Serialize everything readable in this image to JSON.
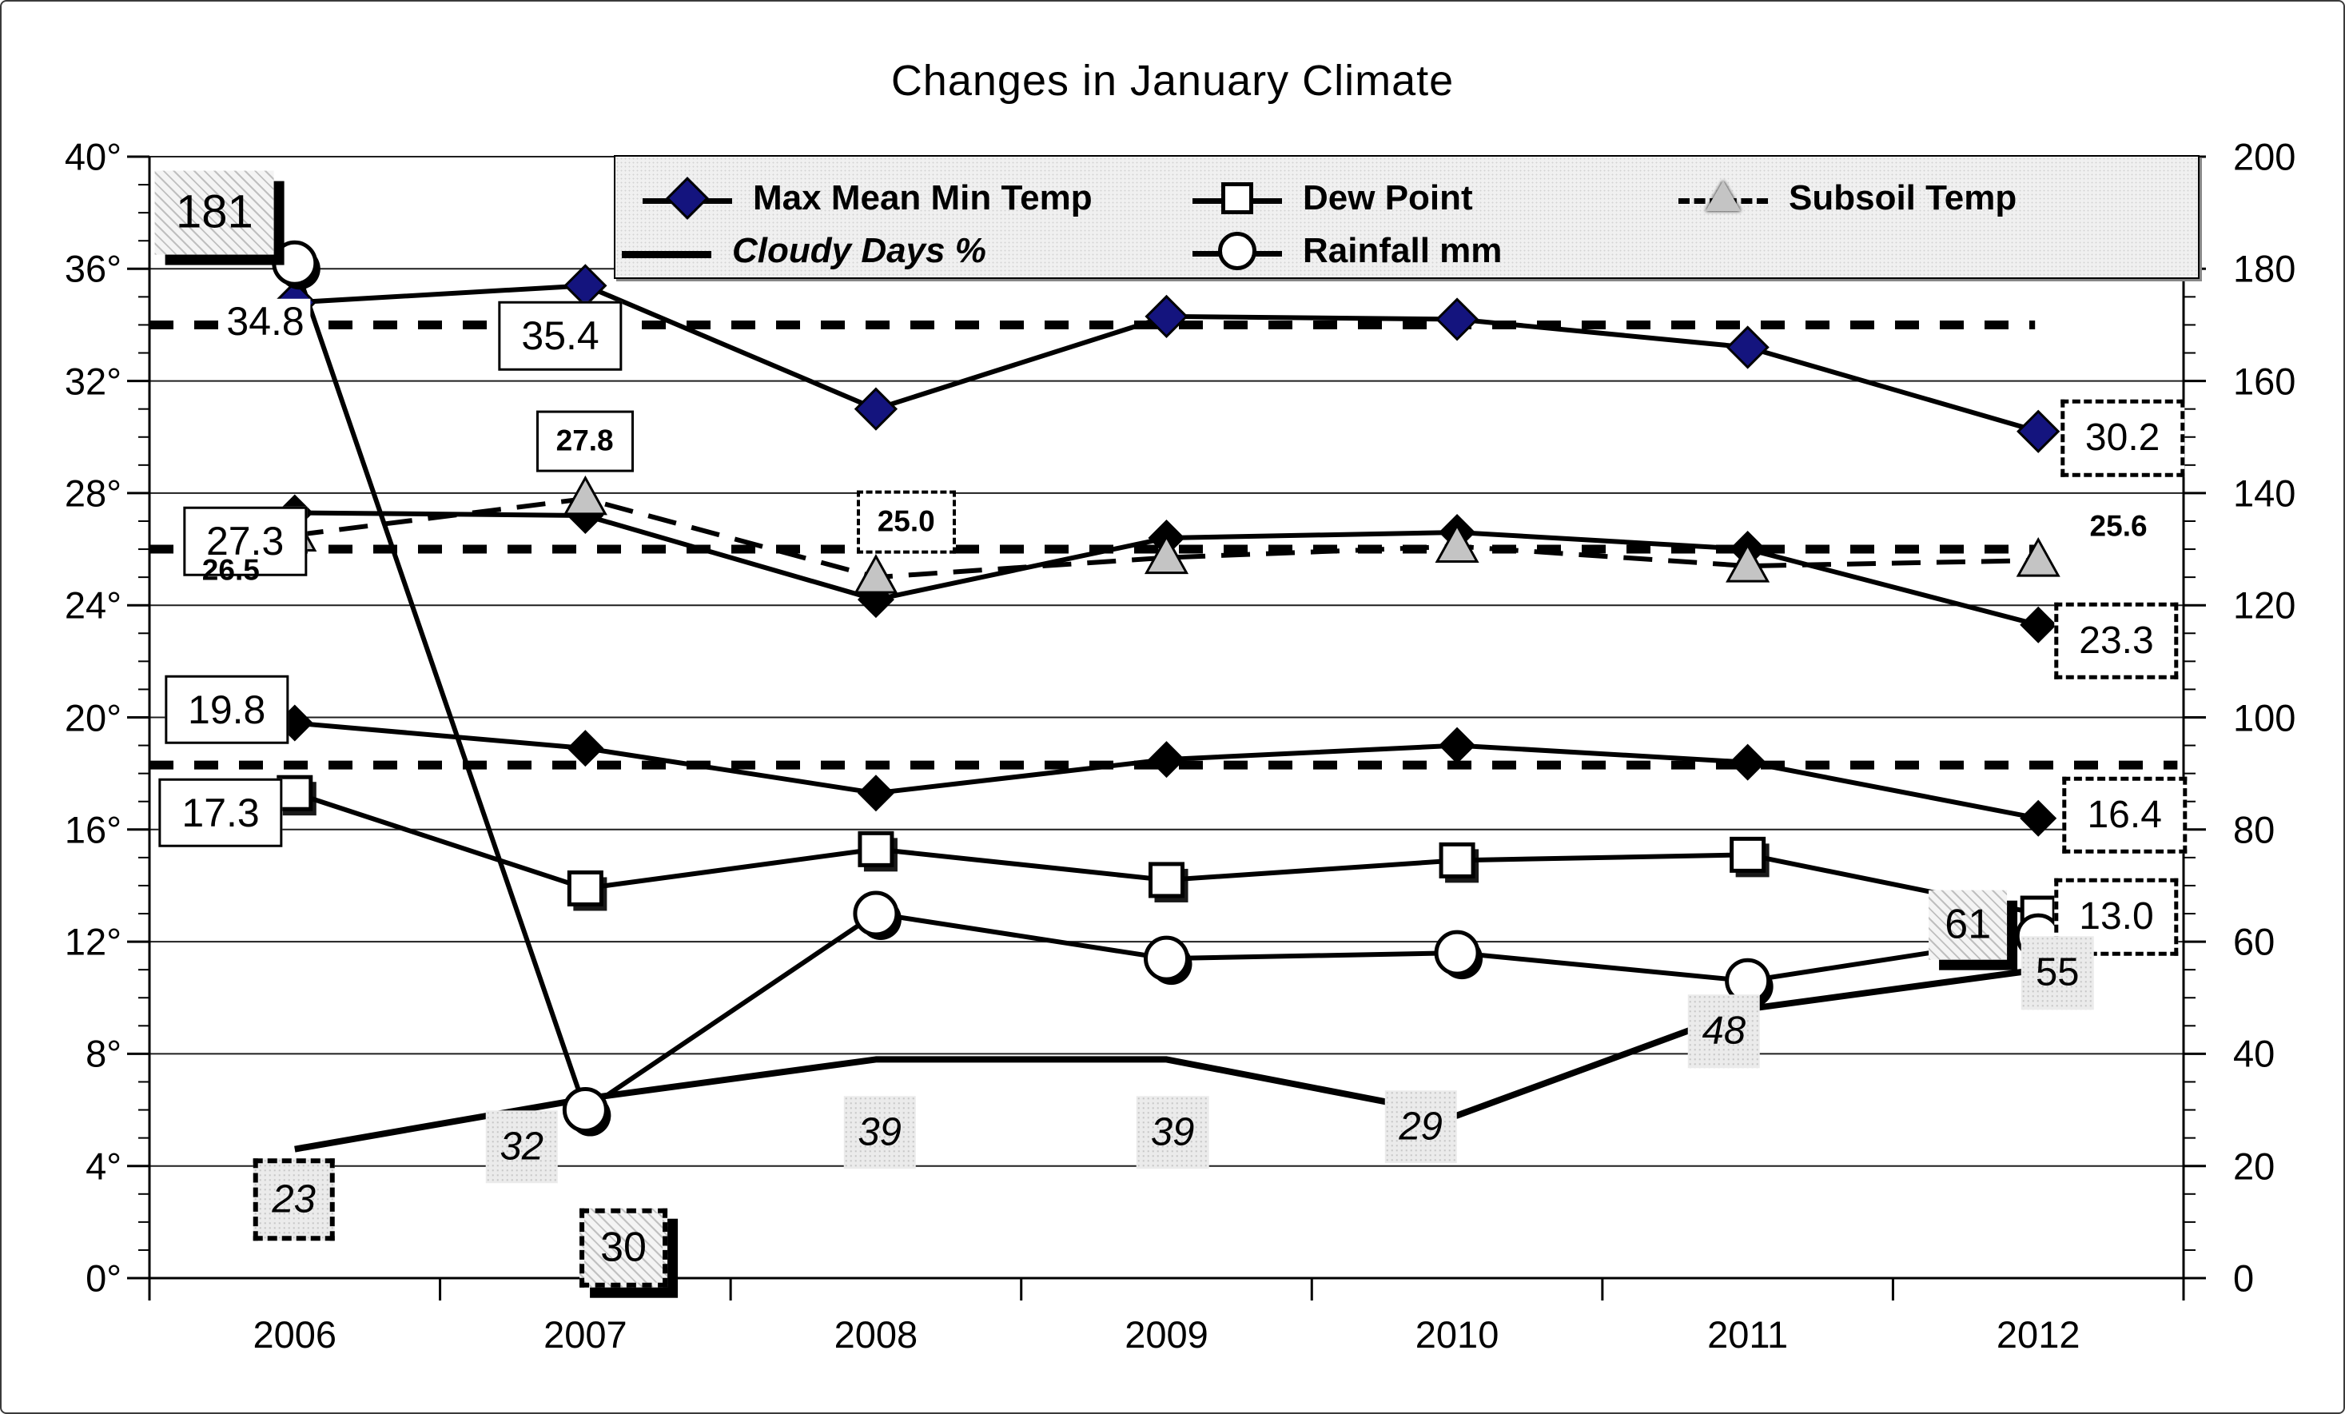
{
  "chart_data": {
    "type": "line",
    "title": "Changes in January Climate",
    "x_categories": [
      "2006",
      "2007",
      "2008",
      "2009",
      "2010",
      "2011",
      "2012"
    ],
    "left_axis": {
      "min": 0,
      "max": 40,
      "tick_step": 4,
      "labels": [
        "40°",
        "36°",
        "32°",
        "28°",
        "24°",
        "20°",
        "16°",
        "12°",
        "8°",
        "4°",
        "0°"
      ]
    },
    "right_axis": {
      "min": 0,
      "max": 200,
      "tick_step": 20,
      "labels": [
        "200",
        "180",
        "160",
        "140",
        "120",
        "100",
        "80",
        "60",
        "40",
        "20",
        "0"
      ]
    },
    "grid": "horizontal",
    "legend": {
      "position": "top",
      "max_temp": "Max Mean Min Temp",
      "dew_point": "Dew Point",
      "subsoil": "Subsoil Temp",
      "cloudy": "Cloudy Days %",
      "rainfall": "Rainfall mm"
    },
    "colors": {
      "diamond_blue": "#14147e",
      "marker_gray": "#c4c4c4",
      "line_black": "#000000"
    },
    "series": [
      {
        "name": "Max Temp",
        "legend_group": "Max Mean Min Temp",
        "axis": "left",
        "line": "solid",
        "marker": "diamond-blue",
        "values": [
          34.8,
          35.4,
          31.0,
          34.3,
          34.2,
          33.2,
          30.2
        ]
      },
      {
        "name": "Mean Temp",
        "legend_group": "Max Mean Min Temp",
        "axis": "left",
        "line": "solid",
        "marker": "diamond-black",
        "values": [
          27.3,
          27.2,
          24.2,
          26.4,
          26.6,
          26.0,
          23.3
        ]
      },
      {
        "name": "Min Temp",
        "legend_group": "Max Mean Min Temp",
        "axis": "left",
        "line": "solid",
        "marker": "diamond-black",
        "values": [
          19.8,
          18.9,
          17.3,
          18.5,
          19.0,
          18.4,
          16.4
        ]
      },
      {
        "name": "Dew Point",
        "axis": "left",
        "line": "solid",
        "marker": "square-white",
        "values": [
          17.3,
          13.9,
          15.3,
          14.2,
          14.9,
          15.1,
          13.0
        ]
      },
      {
        "name": "Subsoil Temp",
        "axis": "left",
        "line": "dashed",
        "marker": "triangle-gray",
        "values": [
          26.5,
          27.8,
          25.0,
          25.7,
          26.1,
          25.4,
          25.6
        ]
      },
      {
        "name": "Cloudy Days %",
        "axis": "right",
        "line": "thick",
        "marker": "none",
        "values": [
          23,
          32,
          39,
          39,
          29,
          48,
          55
        ]
      },
      {
        "name": "Rainfall mm",
        "axis": "right",
        "line": "solid",
        "marker": "circle-white",
        "values": [
          181,
          30,
          65,
          57,
          58,
          53,
          61
        ]
      }
    ],
    "reference_lines": [
      {
        "axis": "left",
        "value": 34.0,
        "style": "heavy-dotted",
        "extent": 0.927
      },
      {
        "axis": "left",
        "value": 26.0,
        "style": "heavy-dotted",
        "extent": 0.928
      },
      {
        "axis": "left",
        "value": 18.3,
        "style": "heavy-dotted",
        "extent": 0.997
      }
    ],
    "annotations": [
      {
        "text": "181",
        "series": "Rainfall mm",
        "year": "2006",
        "cx": 0.032,
        "cy": 0.05,
        "style": "rain-lg"
      },
      {
        "text": "34.8",
        "series": "Max Temp",
        "year": "2006",
        "cx": 0.057,
        "cy": 0.147,
        "style": "plain"
      },
      {
        "text": "35.4",
        "series": "Max Temp",
        "year": "2007",
        "cx": 0.202,
        "cy": 0.16,
        "style": "box"
      },
      {
        "text": "27.8",
        "series": "Subsoil Temp",
        "year": "2007",
        "cx": 0.214,
        "cy": 0.254,
        "style": "box-sm"
      },
      {
        "text": "27.3",
        "series": "Mean Temp",
        "year": "2006",
        "cx": 0.047,
        "cy": 0.343,
        "style": "box"
      },
      {
        "text": "26.5",
        "series": "Subsoil Temp",
        "year": "2006",
        "cx": 0.04,
        "cy": 0.369,
        "style": "bold-sm"
      },
      {
        "text": "25.0",
        "series": "Subsoil Temp",
        "year": "2008",
        "cx": 0.372,
        "cy": 0.326,
        "style": "dash-sm"
      },
      {
        "text": "19.8",
        "series": "Min Temp",
        "year": "2006",
        "cx": 0.038,
        "cy": 0.493,
        "style": "box"
      },
      {
        "text": "17.3",
        "series": "Dew Point",
        "year": "2006",
        "cx": 0.035,
        "cy": 0.585,
        "style": "box"
      },
      {
        "text": "30.2",
        "series": "Max Temp",
        "year": "2012",
        "cx": 0.97,
        "cy": 0.251,
        "style": "dash"
      },
      {
        "text": "25.6",
        "series": "Subsoil Temp",
        "year": "2012",
        "cx": 0.968,
        "cy": 0.33,
        "style": "bold-sm"
      },
      {
        "text": "23.3",
        "series": "Mean Temp",
        "year": "2012",
        "cx": 0.967,
        "cy": 0.432,
        "style": "dash"
      },
      {
        "text": "16.4",
        "series": "Min Temp",
        "year": "2012",
        "cx": 0.971,
        "cy": 0.587,
        "style": "dash"
      },
      {
        "text": "13.0",
        "series": "Dew Point",
        "year": "2012",
        "cx": 0.967,
        "cy": 0.678,
        "style": "dash"
      },
      {
        "text": "61",
        "series": "Rainfall mm",
        "year": "2012",
        "cx": 0.894,
        "cy": 0.685,
        "style": "rain"
      },
      {
        "text": "55",
        "series": "Cloudy Days %",
        "year": "2012",
        "cx": 0.938,
        "cy": 0.728,
        "style": "cloudy-plain"
      },
      {
        "text": "48",
        "series": "Cloudy Days %",
        "year": "2011",
        "cx": 0.774,
        "cy": 0.78,
        "style": "cloudy"
      },
      {
        "text": "29",
        "series": "Cloudy Days %",
        "year": "2010",
        "cx": 0.625,
        "cy": 0.865,
        "style": "cloudy"
      },
      {
        "text": "39",
        "series": "Cloudy Days %",
        "year": "2008",
        "cx": 0.359,
        "cy": 0.87,
        "style": "cloudy"
      },
      {
        "text": "39",
        "series": "Cloudy Days %",
        "year": "2009",
        "cx": 0.503,
        "cy": 0.87,
        "style": "cloudy"
      },
      {
        "text": "32",
        "series": "Cloudy Days %",
        "year": "2007",
        "cx": 0.183,
        "cy": 0.883,
        "style": "cloudy"
      },
      {
        "text": "23",
        "series": "Cloudy Days %",
        "year": "2006",
        "cx": 0.071,
        "cy": 0.93,
        "style": "cloudy-dash"
      },
      {
        "text": "30",
        "series": "Rainfall mm",
        "year": "2007",
        "cx": 0.233,
        "cy": 0.973,
        "style": "rain-dash"
      }
    ]
  }
}
